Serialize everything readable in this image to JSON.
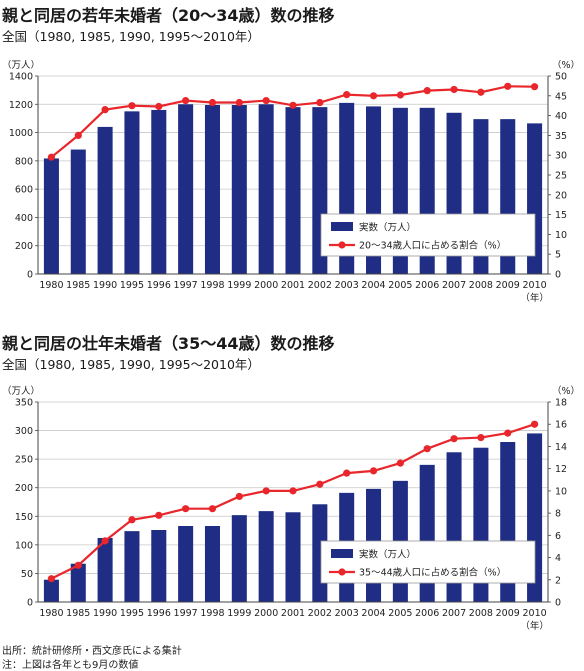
{
  "chart_data": [
    {
      "type": "bar",
      "title": "親と同居の若年未婚者（20〜34歳）数の推移",
      "subtitle": "全国（1980, 1985, 1990, 1995〜2010年）",
      "y_unit_label": "（万人）",
      "y2_unit_label": "（%）",
      "x_unit_label": "（年）",
      "categories": [
        "1980",
        "1985",
        "1990",
        "1995",
        "1996",
        "1997",
        "1998",
        "1999",
        "2000",
        "2001",
        "2002",
        "2003",
        "2004",
        "2005",
        "2006",
        "2007",
        "2008",
        "2009",
        "2010"
      ],
      "ylim": [
        0,
        1400
      ],
      "yticks": [
        0,
        200,
        400,
        600,
        800,
        1000,
        1200,
        1400
      ],
      "y2lim": [
        0,
        50
      ],
      "y2ticks": [
        0,
        5,
        10,
        15,
        20,
        25,
        30,
        35,
        40,
        45,
        50
      ],
      "series": [
        {
          "name": "実数（万人）",
          "kind": "bar",
          "color": "#1f2d84",
          "values": [
            817,
            880,
            1040,
            1150,
            1160,
            1200,
            1195,
            1195,
            1200,
            1180,
            1180,
            1210,
            1185,
            1175,
            1175,
            1140,
            1095,
            1095,
            1065
          ]
        },
        {
          "name": "20〜34歳人口に占める割合（%）",
          "kind": "line",
          "axis": "right",
          "color": "#e8262b",
          "values": [
            29.5,
            35.0,
            41.5,
            42.5,
            42.3,
            43.8,
            43.3,
            43.3,
            43.8,
            42.6,
            43.3,
            45.3,
            45.0,
            45.2,
            46.3,
            46.6,
            45.9,
            47.4,
            47.3
          ]
        }
      ],
      "grid": true,
      "legend": "bottom-right"
    },
    {
      "type": "bar",
      "title": "親と同居の壮年未婚者（35〜44歳）数の推移",
      "subtitle": "全国（1980, 1985, 1990, 1995〜2010年）",
      "y_unit_label": "（万人）",
      "y2_unit_label": "（%）",
      "x_unit_label": "（年）",
      "categories": [
        "1980",
        "1985",
        "1990",
        "1995",
        "1996",
        "1997",
        "1998",
        "1999",
        "2000",
        "2001",
        "2002",
        "2003",
        "2004",
        "2005",
        "2006",
        "2007",
        "2008",
        "2009",
        "2010"
      ],
      "ylim": [
        0,
        350
      ],
      "yticks": [
        0,
        50,
        100,
        150,
        200,
        250,
        300,
        350
      ],
      "y2lim": [
        0,
        18
      ],
      "y2ticks": [
        0,
        2,
        4,
        6,
        8,
        10,
        12,
        14,
        16,
        18
      ],
      "series": [
        {
          "name": "実数（万人）",
          "kind": "bar",
          "color": "#1f2d84",
          "values": [
            39,
            67,
            112,
            124,
            126,
            133,
            133,
            152,
            159,
            157,
            171,
            191,
            198,
            212,
            240,
            262,
            270,
            280,
            295
          ]
        },
        {
          "name": "35〜44歳人口に占める割合（%）",
          "kind": "line",
          "axis": "right",
          "color": "#e8262b",
          "values": [
            2.1,
            3.3,
            5.5,
            7.4,
            7.8,
            8.4,
            8.4,
            9.5,
            10.0,
            10.0,
            10.6,
            11.6,
            11.8,
            12.5,
            13.8,
            14.7,
            14.8,
            15.2,
            16.0
          ]
        }
      ],
      "grid": true,
      "legend": "bottom-right"
    }
  ],
  "footer": {
    "source": "出所：統計研修所・西文彦氏による集計",
    "note": "注：上図は各年とも9月の数値"
  }
}
